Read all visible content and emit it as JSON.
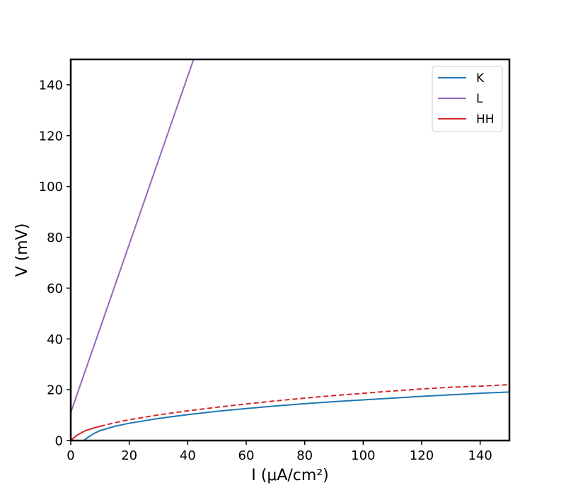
{
  "chart_data": {
    "type": "line",
    "title": "",
    "xlabel": "I (μA/cm²)",
    "ylabel": "V (mV)",
    "xlim": [
      0,
      150
    ],
    "ylim": [
      0,
      150
    ],
    "xticks": [
      "0",
      "20",
      "40",
      "60",
      "80",
      "100",
      "120",
      "140"
    ],
    "yticks": [
      "0",
      "20",
      "40",
      "60",
      "80",
      "100",
      "120",
      "140"
    ],
    "grid": false,
    "legend_position": "top-right",
    "series": [
      {
        "name": "K",
        "color": "#1f77b4",
        "style": "solid",
        "x": [
          4.5,
          5,
          6,
          8,
          10,
          15,
          20,
          30,
          40,
          50,
          60,
          70,
          80,
          90,
          100,
          110,
          120,
          130,
          140,
          150
        ],
        "y": [
          0,
          0.5,
          1.4,
          2.8,
          3.9,
          5.6,
          6.8,
          8.7,
          10.2,
          11.5,
          12.6,
          13.6,
          14.5,
          15.3,
          16.0,
          16.7,
          17.4,
          18.0,
          18.6,
          19.1
        ]
      },
      {
        "name": "L",
        "color": "#9467bd",
        "style": "solid",
        "x": [
          0,
          42
        ],
        "y": [
          11,
          150
        ]
      },
      {
        "name": "HH",
        "color": "#d62728",
        "style": "solid-then-dashed",
        "x": [
          0,
          2,
          5,
          8,
          10,
          15,
          20,
          30,
          40,
          50,
          60,
          70,
          80,
          90,
          100,
          110,
          120,
          130,
          140,
          150
        ],
        "y": [
          0,
          2.0,
          3.9,
          5.0,
          5.6,
          7.0,
          8.2,
          10.1,
          11.7,
          13.1,
          14.4,
          15.6,
          16.7,
          17.7,
          18.6,
          19.5,
          20.3,
          21.0,
          21.4,
          22.0
        ]
      }
    ]
  }
}
